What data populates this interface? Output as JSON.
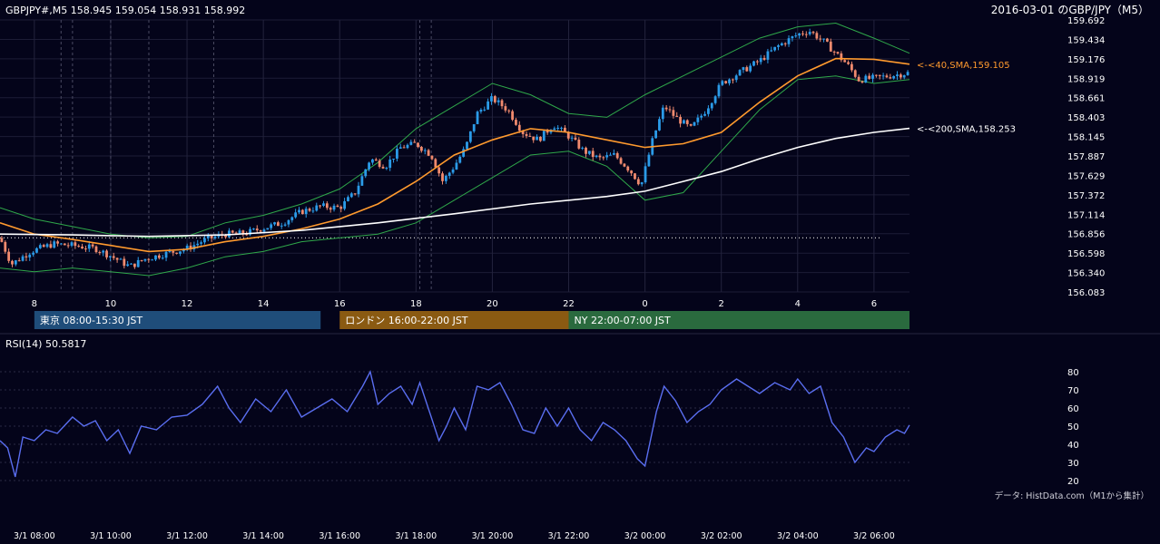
{
  "header": {
    "ohlc": "GBPJPY#,M5 158.945 159.054 158.931 158.992",
    "title": "2016-03-01 のGBP/JPY（M5）"
  },
  "colors": {
    "background": "#04041a",
    "candle_up": "#2b9be8",
    "candle_down": "#f08a6e",
    "sma40": "#ff9a2e",
    "sma200": "#ffffff",
    "bollinger": "#2fa84a",
    "rsi": "#5a6ef0",
    "tokyo": "#1f4d7a",
    "london": "#8a5a12",
    "ny": "#2a6a3e"
  },
  "chart_data": [
    {
      "type": "candlestick",
      "name": "price",
      "ylim": [
        156.083,
        159.692
      ],
      "y_ticks": [
        "159.692",
        "159.434",
        "159.176",
        "158.919",
        "158.661",
        "158.403",
        "158.145",
        "157.887",
        "157.629",
        "157.372",
        "157.114",
        "156.856",
        "156.598",
        "156.340",
        "156.083"
      ],
      "x_tick_labels": [
        "8",
        "10",
        "12",
        "14",
        "16",
        "18",
        "20",
        "22",
        "0",
        "2",
        "4",
        "6"
      ],
      "x_tick_hours": [
        8,
        10,
        12,
        14,
        16,
        18,
        20,
        22,
        24,
        26,
        28,
        30
      ],
      "x_range_hours": [
        7.1,
        30.93
      ],
      "close_path": [
        [
          7.1,
          156.8
        ],
        [
          7.4,
          156.45
        ],
        [
          7.9,
          156.62
        ],
        [
          8.5,
          156.72
        ],
        [
          9.0,
          156.7
        ],
        [
          9.6,
          156.66
        ],
        [
          10.0,
          156.56
        ],
        [
          10.5,
          156.42
        ],
        [
          10.9,
          156.52
        ],
        [
          11.5,
          156.6
        ],
        [
          12.0,
          156.66
        ],
        [
          12.5,
          156.78
        ],
        [
          13.0,
          156.85
        ],
        [
          13.5,
          156.86
        ],
        [
          14.0,
          156.93
        ],
        [
          14.5,
          157.0
        ],
        [
          15.0,
          157.15
        ],
        [
          15.5,
          157.22
        ],
        [
          16.0,
          157.2
        ],
        [
          16.4,
          157.4
        ],
        [
          16.8,
          157.85
        ],
        [
          17.2,
          157.75
        ],
        [
          17.6,
          158.0
        ],
        [
          18.0,
          158.05
        ],
        [
          18.4,
          157.9
        ],
        [
          18.7,
          157.55
        ],
        [
          19.0,
          157.75
        ],
        [
          19.3,
          158.0
        ],
        [
          19.6,
          158.45
        ],
        [
          20.0,
          158.65
        ],
        [
          20.4,
          158.5
        ],
        [
          20.8,
          158.2
        ],
        [
          21.2,
          158.1
        ],
        [
          21.6,
          158.3
        ],
        [
          22.0,
          158.15
        ],
        [
          22.4,
          157.95
        ],
        [
          22.8,
          157.85
        ],
        [
          23.2,
          157.9
        ],
        [
          23.6,
          157.7
        ],
        [
          23.9,
          157.5
        ],
        [
          24.2,
          158.1
        ],
        [
          24.5,
          158.55
        ],
        [
          24.8,
          158.4
        ],
        [
          25.2,
          158.25
        ],
        [
          25.6,
          158.5
        ],
        [
          26.0,
          158.85
        ],
        [
          26.5,
          159.0
        ],
        [
          27.0,
          159.15
        ],
        [
          27.5,
          159.35
        ],
        [
          28.0,
          159.5
        ],
        [
          28.3,
          159.55
        ],
        [
          28.7,
          159.4
        ],
        [
          29.0,
          159.25
        ],
        [
          29.3,
          159.1
        ],
        [
          29.6,
          158.9
        ],
        [
          30.0,
          158.92
        ],
        [
          30.4,
          158.95
        ],
        [
          30.93,
          158.992
        ]
      ],
      "overlays": [
        {
          "name": "<-<40,SMA,159.105",
          "last": 159.105,
          "path": [
            [
              7.1,
              157.0
            ],
            [
              8.0,
              156.85
            ],
            [
              9.0,
              156.78
            ],
            [
              10.0,
              156.7
            ],
            [
              11.0,
              156.62
            ],
            [
              12.0,
              156.65
            ],
            [
              13.0,
              156.75
            ],
            [
              14.0,
              156.82
            ],
            [
              15.0,
              156.92
            ],
            [
              16.0,
              157.05
            ],
            [
              17.0,
              157.25
            ],
            [
              18.0,
              157.55
            ],
            [
              19.0,
              157.9
            ],
            [
              20.0,
              158.1
            ],
            [
              21.0,
              158.25
            ],
            [
              22.0,
              158.2
            ],
            [
              23.0,
              158.1
            ],
            [
              24.0,
              158.0
            ],
            [
              25.0,
              158.05
            ],
            [
              26.0,
              158.2
            ],
            [
              27.0,
              158.6
            ],
            [
              28.0,
              158.95
            ],
            [
              29.0,
              159.18
            ],
            [
              30.0,
              159.17
            ],
            [
              30.93,
              159.105
            ]
          ]
        },
        {
          "name": "<-<200,SMA,158.253",
          "last": 158.253,
          "path": [
            [
              7.1,
              156.85
            ],
            [
              9.0,
              156.84
            ],
            [
              11.0,
              156.82
            ],
            [
              13.0,
              156.84
            ],
            [
              15.0,
              156.9
            ],
            [
              17.0,
              157.0
            ],
            [
              19.0,
              157.12
            ],
            [
              21.0,
              157.25
            ],
            [
              23.0,
              157.35
            ],
            [
              24.0,
              157.42
            ],
            [
              25.0,
              157.55
            ],
            [
              26.0,
              157.68
            ],
            [
              27.0,
              157.85
            ],
            [
              28.0,
              158.0
            ],
            [
              29.0,
              158.12
            ],
            [
              30.0,
              158.2
            ],
            [
              30.93,
              158.253
            ]
          ]
        }
      ],
      "bollinger_upper": [
        [
          7.1,
          157.2
        ],
        [
          8.0,
          157.05
        ],
        [
          9.0,
          156.95
        ],
        [
          10.0,
          156.85
        ],
        [
          11.0,
          156.8
        ],
        [
          12.0,
          156.82
        ],
        [
          13.0,
          157.0
        ],
        [
          14.0,
          157.1
        ],
        [
          15.0,
          157.25
        ],
        [
          16.0,
          157.45
        ],
        [
          17.0,
          157.8
        ],
        [
          18.0,
          158.25
        ],
        [
          19.0,
          158.55
        ],
        [
          20.0,
          158.85
        ],
        [
          21.0,
          158.7
        ],
        [
          22.0,
          158.45
        ],
        [
          23.0,
          158.4
        ],
        [
          24.0,
          158.7
        ],
        [
          25.0,
          158.95
        ],
        [
          26.0,
          159.2
        ],
        [
          27.0,
          159.45
        ],
        [
          28.0,
          159.6
        ],
        [
          29.0,
          159.65
        ],
        [
          30.0,
          159.45
        ],
        [
          30.93,
          159.25
        ]
      ],
      "bollinger_lower": [
        [
          7.1,
          156.4
        ],
        [
          8.0,
          156.35
        ],
        [
          9.0,
          156.4
        ],
        [
          10.0,
          156.35
        ],
        [
          11.0,
          156.3
        ],
        [
          12.0,
          156.4
        ],
        [
          13.0,
          156.55
        ],
        [
          14.0,
          156.62
        ],
        [
          15.0,
          156.75
        ],
        [
          16.0,
          156.8
        ],
        [
          17.0,
          156.85
        ],
        [
          18.0,
          157.0
        ],
        [
          19.0,
          157.3
        ],
        [
          20.0,
          157.6
        ],
        [
          21.0,
          157.9
        ],
        [
          22.0,
          157.95
        ],
        [
          23.0,
          157.75
        ],
        [
          24.0,
          157.3
        ],
        [
          25.0,
          157.4
        ],
        [
          26.0,
          157.95
        ],
        [
          27.0,
          158.5
        ],
        [
          28.0,
          158.9
        ],
        [
          29.0,
          158.95
        ],
        [
          30.0,
          158.85
        ],
        [
          30.93,
          158.9
        ]
      ],
      "dotted_level": 156.8
    },
    {
      "type": "line",
      "name": "RSI(14) 50.5817",
      "ylim": [
        15,
        85
      ],
      "y_ticks": [
        80,
        70,
        60,
        50,
        40,
        30,
        20
      ],
      "x_range_hours": [
        7.1,
        30.93
      ],
      "x_tick_labels": [
        "3/1 08:00",
        "3/1 10:00",
        "3/1 12:00",
        "3/1 14:00",
        "3/1 16:00",
        "3/1 18:00",
        "3/1 20:00",
        "3/1 22:00",
        "3/2 00:00",
        "3/2 02:00",
        "3/2 04:00",
        "3/2 06:00"
      ],
      "x_tick_hours": [
        8,
        10,
        12,
        14,
        16,
        18,
        20,
        22,
        24,
        26,
        28,
        30
      ],
      "path": [
        [
          7.1,
          42
        ],
        [
          7.3,
          38
        ],
        [
          7.5,
          22
        ],
        [
          7.7,
          44
        ],
        [
          8.0,
          42
        ],
        [
          8.3,
          48
        ],
        [
          8.6,
          46
        ],
        [
          9.0,
          55
        ],
        [
          9.3,
          50
        ],
        [
          9.6,
          53
        ],
        [
          9.9,
          42
        ],
        [
          10.2,
          48
        ],
        [
          10.5,
          35
        ],
        [
          10.8,
          50
        ],
        [
          11.2,
          48
        ],
        [
          11.6,
          55
        ],
        [
          12.0,
          56
        ],
        [
          12.4,
          62
        ],
        [
          12.8,
          72
        ],
        [
          13.1,
          60
        ],
        [
          13.4,
          52
        ],
        [
          13.8,
          65
        ],
        [
          14.2,
          58
        ],
        [
          14.6,
          70
        ],
        [
          15.0,
          55
        ],
        [
          15.4,
          60
        ],
        [
          15.8,
          65
        ],
        [
          16.2,
          58
        ],
        [
          16.6,
          72
        ],
        [
          16.8,
          80
        ],
        [
          17.0,
          62
        ],
        [
          17.3,
          68
        ],
        [
          17.6,
          72
        ],
        [
          17.9,
          62
        ],
        [
          18.1,
          74
        ],
        [
          18.4,
          55
        ],
        [
          18.6,
          42
        ],
        [
          18.8,
          50
        ],
        [
          19.0,
          60
        ],
        [
          19.3,
          48
        ],
        [
          19.6,
          72
        ],
        [
          19.9,
          70
        ],
        [
          20.2,
          74
        ],
        [
          20.5,
          62
        ],
        [
          20.8,
          48
        ],
        [
          21.1,
          46
        ],
        [
          21.4,
          60
        ],
        [
          21.7,
          50
        ],
        [
          22.0,
          60
        ],
        [
          22.3,
          48
        ],
        [
          22.6,
          42
        ],
        [
          22.9,
          52
        ],
        [
          23.2,
          48
        ],
        [
          23.5,
          42
        ],
        [
          23.8,
          32
        ],
        [
          24.0,
          28
        ],
        [
          24.3,
          58
        ],
        [
          24.5,
          72
        ],
        [
          24.8,
          64
        ],
        [
          25.1,
          52
        ],
        [
          25.4,
          58
        ],
        [
          25.7,
          62
        ],
        [
          26.0,
          70
        ],
        [
          26.4,
          76
        ],
        [
          26.7,
          72
        ],
        [
          27.0,
          68
        ],
        [
          27.4,
          74
        ],
        [
          27.8,
          70
        ],
        [
          28.0,
          76
        ],
        [
          28.3,
          68
        ],
        [
          28.6,
          72
        ],
        [
          28.9,
          52
        ],
        [
          29.2,
          44
        ],
        [
          29.5,
          30
        ],
        [
          29.8,
          38
        ],
        [
          30.0,
          36
        ],
        [
          30.3,
          44
        ],
        [
          30.6,
          48
        ],
        [
          30.8,
          46
        ],
        [
          30.93,
          50.5817
        ]
      ]
    }
  ],
  "sessions": [
    {
      "label": "東京 08:00-15:30 JST",
      "start": 8,
      "end": 15.5
    },
    {
      "label": "ロンドン 16:00-22:00 JST",
      "start": 16,
      "end": 22
    },
    {
      "label": "NY 22:00-07:00 JST",
      "start": 22,
      "end": 31
    }
  ],
  "footer": {
    "source": "データ: HistData.com（M1から集計）"
  }
}
